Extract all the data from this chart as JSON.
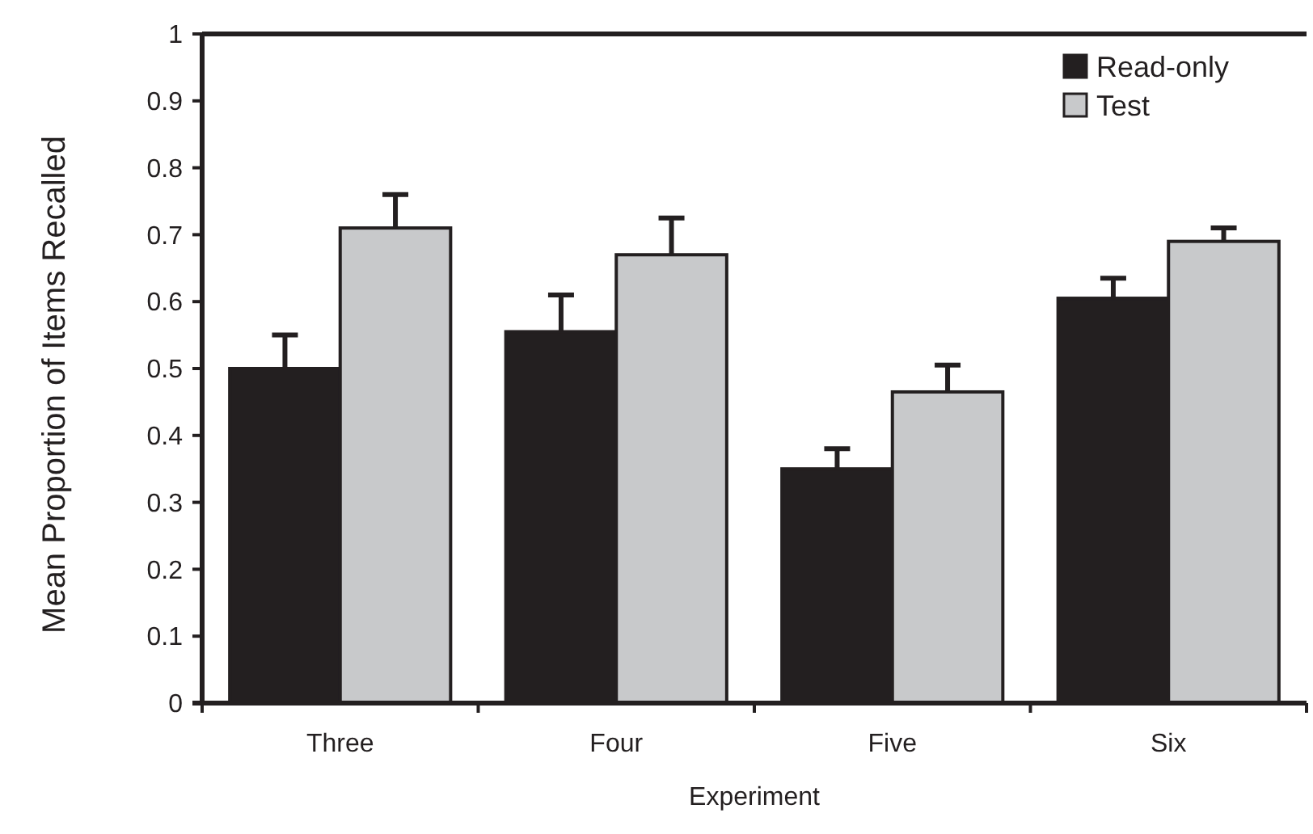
{
  "chart_data": {
    "type": "bar",
    "xlabel": "Experiment",
    "ylabel": "Mean Proportion of Items Recalled",
    "categories": [
      "Three",
      "Four",
      "Five",
      "Six"
    ],
    "series": [
      {
        "name": "Read-only",
        "color": "#231f20",
        "values": [
          0.5,
          0.555,
          0.35,
          0.605
        ],
        "errors": [
          [
            0.5,
            0.55
          ],
          [
            0.555,
            0.61
          ],
          [
            0.35,
            0.38
          ],
          [
            0.605,
            0.635
          ]
        ]
      },
      {
        "name": "Test",
        "color": "#c8c9cb",
        "values": [
          0.71,
          0.67,
          0.465,
          0.69
        ],
        "errors": [
          [
            0.71,
            0.76
          ],
          [
            0.67,
            0.725
          ],
          [
            0.465,
            0.505
          ],
          [
            0.69,
            0.71
          ]
        ]
      }
    ],
    "ylim": [
      0,
      1
    ],
    "yticks": [
      0,
      {
        "value": 0.1,
        "label": "0.1"
      },
      {
        "value": 0.2,
        "label": "0.2"
      },
      {
        "value": 0.3,
        "label": "0.3"
      },
      {
        "value": 0.4,
        "label": "0.4"
      },
      {
        "value": 0.5,
        "label": "0.5"
      },
      {
        "value": 0.6,
        "label": "0.6"
      },
      {
        "value": 0.7,
        "label": "0.7"
      },
      {
        "value": 0.8,
        "label": "0.8"
      },
      {
        "value": 0.9,
        "label": "0.9"
      },
      1
    ],
    "grid": false,
    "legend": "top right"
  }
}
